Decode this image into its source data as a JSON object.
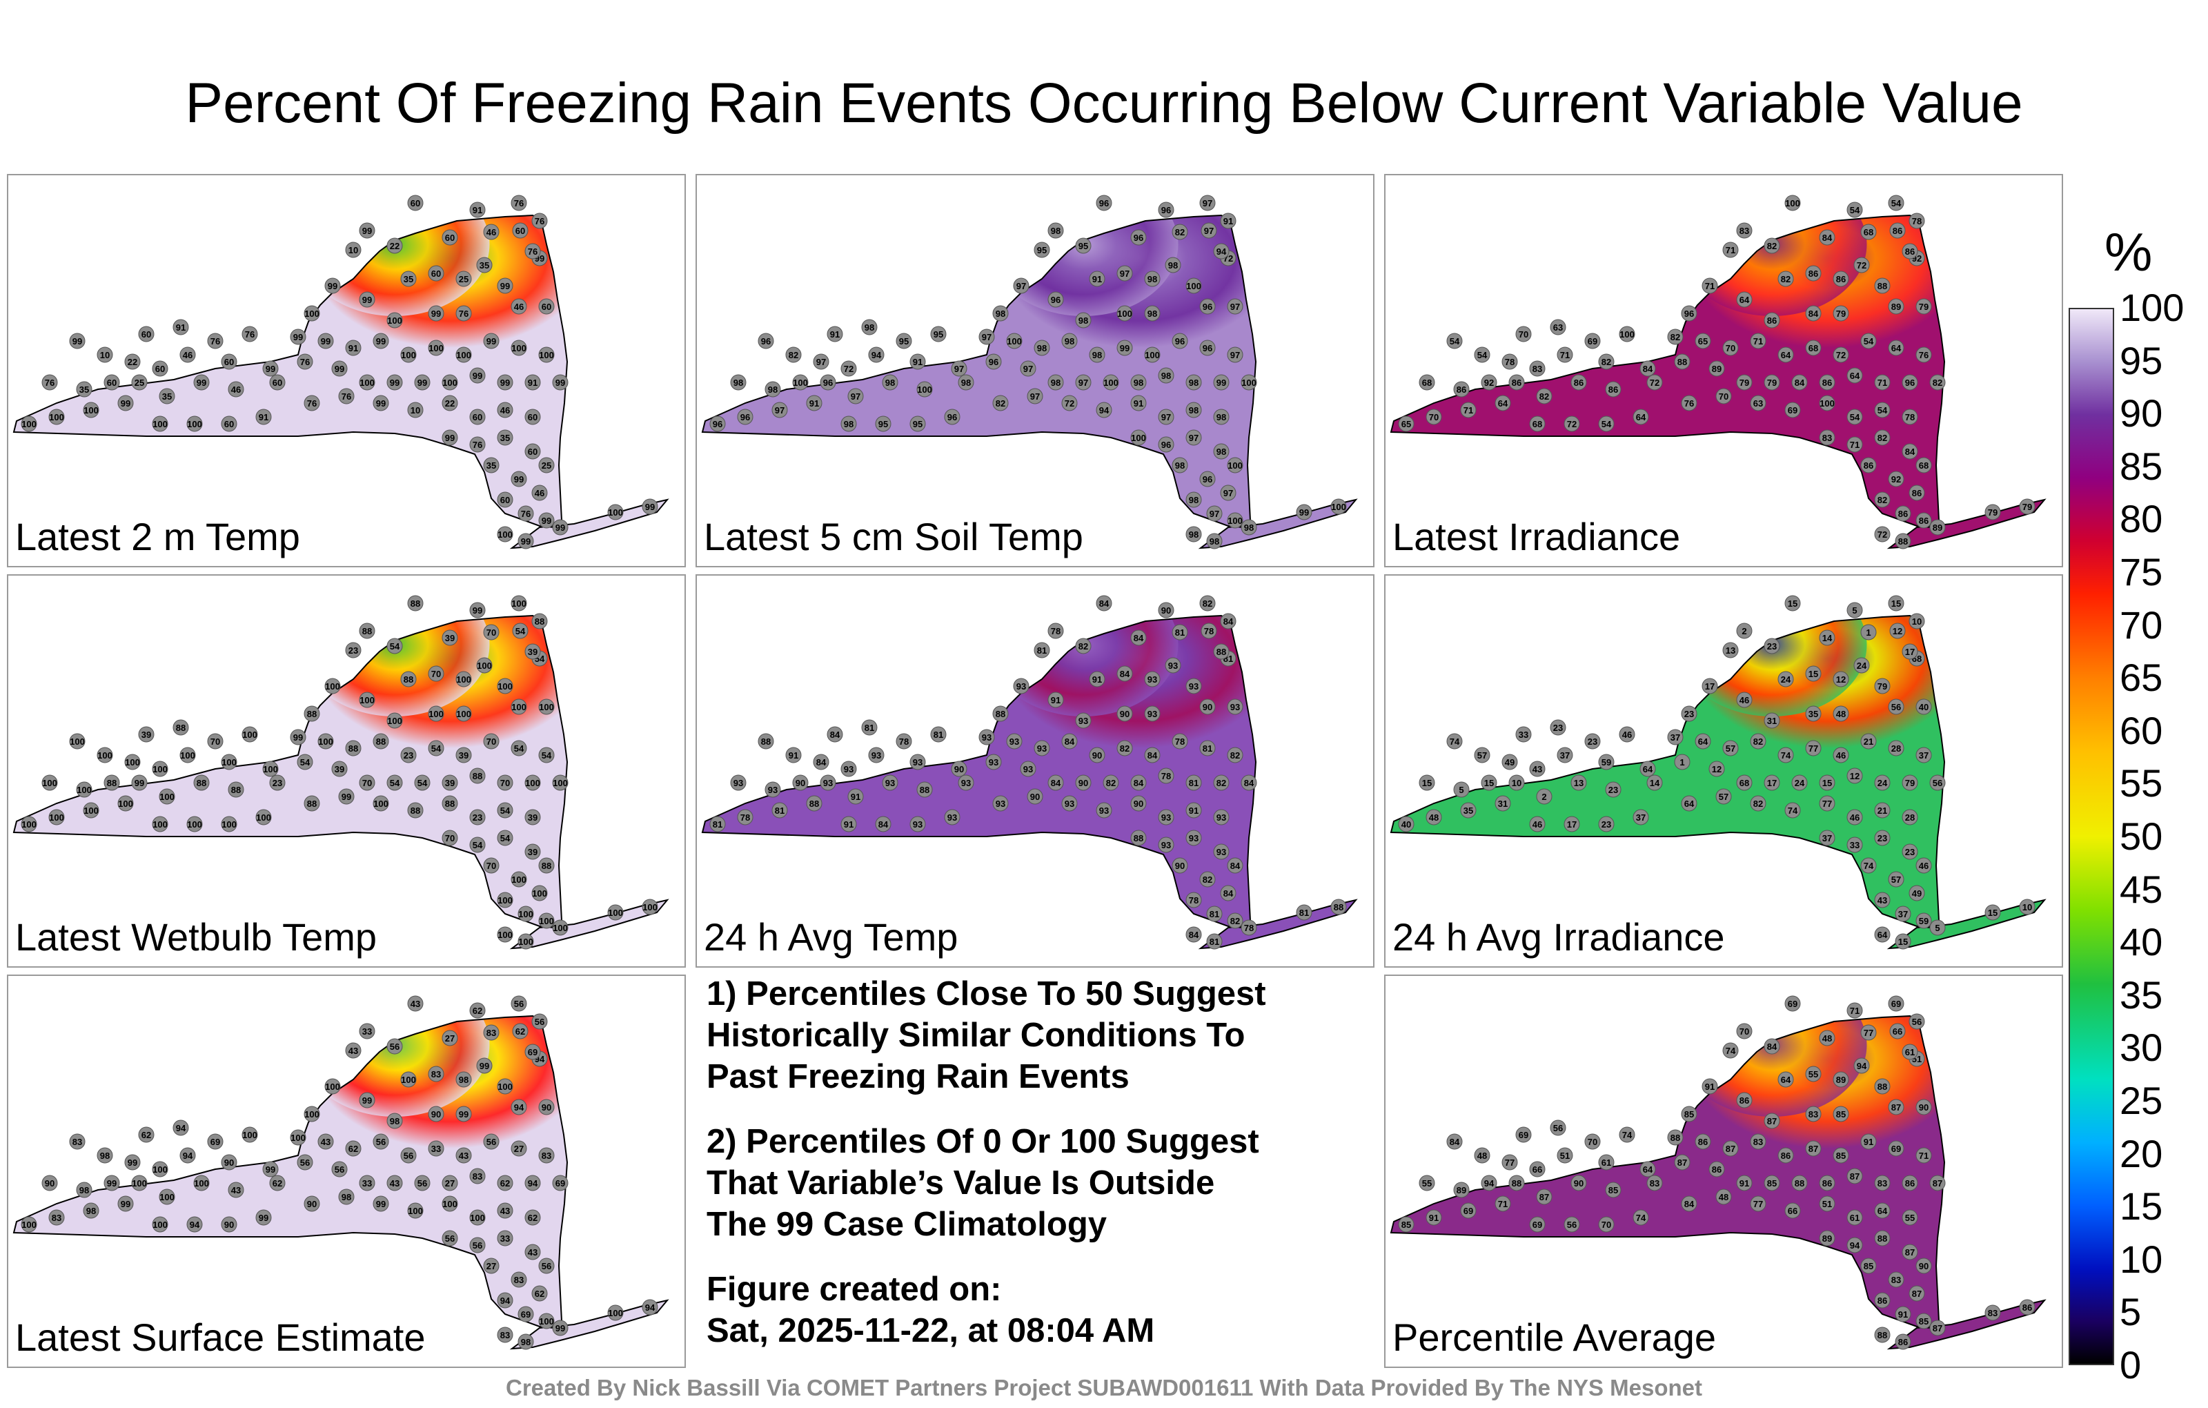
{
  "title": "Percent Of Freezing Rain Events Occurring Below Current Variable Value",
  "colorbar": {
    "unit": "%",
    "ticks": [
      "100",
      "95",
      "90",
      "85",
      "80",
      "75",
      "70",
      "65",
      "60",
      "55",
      "50",
      "45",
      "40",
      "35",
      "30",
      "25",
      "20",
      "15",
      "10",
      "5",
      "0"
    ]
  },
  "panels": [
    {
      "label": "Latest 2 m Temp",
      "colors": {
        "base": "#e2d6ee",
        "hot": "#ff3010",
        "mid": "#ffd000",
        "low": "#20c040"
      }
    },
    {
      "label": "Latest 5 cm Soil Temp",
      "colors": {
        "base": "#a888cc",
        "hot": "#7030a0",
        "mid": "#8a5cb8",
        "low": "#c4b0e0"
      }
    },
    {
      "label": "Latest Irradiance",
      "colors": {
        "base": "#a0106e",
        "hot": "#ff3020",
        "mid": "#ff8000",
        "low": "#6a1a90"
      }
    },
    {
      "label": "Latest Wetbulb Temp",
      "colors": {
        "base": "#e2d6ee",
        "hot": "#ff3010",
        "mid": "#ffd000",
        "low": "#20c040"
      }
    },
    {
      "label": "24 h Avg Temp",
      "colors": {
        "base": "#8a50b8",
        "hot": "#a01060",
        "mid": "#7a3aa8",
        "low": "#9c6cc8"
      }
    },
    {
      "label": "24 h Avg Irradiance",
      "colors": {
        "base": "#30c060",
        "hot": "#ff4000",
        "mid": "#f0e000",
        "low": "#0020c0"
      }
    },
    {
      "label": "Latest Surface Estimate",
      "colors": {
        "base": "#e2d6ee",
        "hot": "#ff2020",
        "mid": "#ffe000",
        "low": "#40c060"
      }
    },
    {
      "label": "Percentile Average",
      "colors": {
        "base": "#8a2a8a",
        "hot": "#ff4010",
        "mid": "#ffb000",
        "low": "#702a9a"
      }
    }
  ],
  "notes": [
    "1) Percentiles Close To 50 Suggest\nHistorically Similar Conditions To\nPast Freezing Rain Events",
    "2) Percentiles Of 0 Or 100 Suggest\nThat Variable’s Value Is Outside\nThe 99 Case Climatology",
    "Figure created on:\nSat, 2025-11-22, at 08:04 AM"
  ],
  "credit": "Created By Nick Bassill Via COMET Partners Project SUBAWD001611 With Data Provided By The NYS Mesonet",
  "chart_data": {
    "type": "heatmap",
    "title": "Percent Of Freezing Rain Events Occurring Below Current Variable Value",
    "unit": "%",
    "range": [
      0,
      100
    ],
    "maps": [
      {
        "name": "Latest 2 m Temp",
        "station_values": [
          60,
          91,
          76,
          76,
          99,
          10,
          22,
          60,
          46,
          60,
          99,
          76,
          35,
          60,
          25,
          35,
          99,
          46,
          60,
          76,
          99,
          100,
          99,
          99,
          100,
          99,
          99,
          91,
          99,
          100,
          100,
          100,
          99,
          100,
          100
        ]
      },
      {
        "name": "Latest 5 cm Soil Temp",
        "station_values": [
          96,
          96,
          97,
          91,
          98,
          95,
          95,
          96,
          82,
          97,
          72,
          94,
          91,
          97,
          98,
          98,
          100,
          96,
          97,
          98,
          100,
          98,
          96,
          97,
          98,
          97,
          100,
          98,
          98,
          98,
          99,
          100
        ]
      },
      {
        "name": "Latest Irradiance",
        "station_values": [
          100,
          54,
          54,
          78,
          83,
          71,
          82,
          84,
          68,
          86,
          92,
          86,
          82,
          86,
          86,
          72,
          88,
          89,
          79,
          79,
          84,
          86,
          64,
          71,
          96,
          82,
          65,
          70,
          71,
          64,
          68,
          72,
          54,
          64,
          76,
          70,
          63,
          69
        ]
      },
      {
        "name": "Latest Wetbulb Temp",
        "station_values": [
          88,
          99,
          100,
          88,
          88,
          23,
          54,
          39,
          70,
          54,
          54,
          39,
          88,
          70,
          100,
          100,
          100,
          100,
          100,
          100,
          100,
          100,
          100,
          100
        ]
      },
      {
        "name": "24 h Avg Temp",
        "station_values": [
          84,
          90,
          82,
          84,
          78,
          81,
          82,
          84,
          81,
          78,
          81,
          88,
          91,
          84,
          93,
          93,
          93,
          90,
          93,
          93,
          90,
          93,
          91,
          93,
          88,
          93,
          93,
          93
        ]
      },
      {
        "name": "24 h Avg Irradiance",
        "station_values": [
          15,
          5,
          15,
          10,
          2,
          13,
          23,
          14,
          1,
          12,
          68,
          17,
          24,
          15,
          12,
          24,
          79,
          56,
          40,
          48,
          35,
          31,
          46,
          17,
          23,
          37,
          64,
          57,
          82,
          74,
          77,
          46,
          21,
          28,
          37,
          33,
          23,
          23,
          46,
          74,
          57,
          49,
          43,
          37,
          59,
          64
        ]
      },
      {
        "name": "Latest Surface Estimate",
        "station_values": [
          43,
          62,
          56,
          56,
          33,
          43,
          56,
          27,
          83,
          62,
          94,
          69,
          100,
          83,
          98,
          99,
          100,
          94,
          90,
          99,
          90,
          98,
          99,
          100,
          100,
          100
        ]
      },
      {
        "name": "Percentile Average",
        "station_values": [
          69,
          71,
          69,
          56,
          70,
          74,
          84,
          48,
          77,
          66,
          51,
          61,
          64,
          55,
          89,
          94,
          88,
          87,
          90,
          85,
          83,
          87,
          86,
          91,
          85,
          88,
          86,
          87,
          83,
          86,
          87,
          85,
          91
        ]
      }
    ]
  }
}
